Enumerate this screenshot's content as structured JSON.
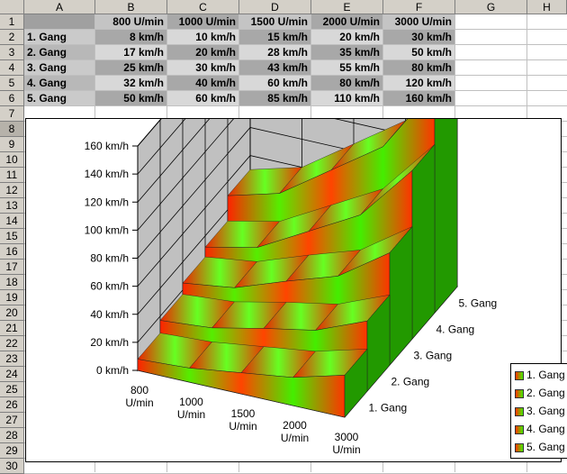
{
  "columns": [
    "A",
    "B",
    "C",
    "D",
    "E",
    "F",
    "G",
    "H"
  ],
  "rows": [
    "1",
    "2",
    "3",
    "4",
    "5",
    "6",
    "7",
    "8",
    "9",
    "10",
    "11",
    "12",
    "13",
    "14",
    "15",
    "16",
    "17",
    "18",
    "19",
    "20",
    "21",
    "22",
    "23",
    "24",
    "25",
    "26",
    "27",
    "28",
    "29",
    "30"
  ],
  "table": {
    "header": [
      "",
      "800 U/min",
      "1000 U/min",
      "1500 U/min",
      "2000 U/min",
      "3000 U/min"
    ],
    "body": [
      [
        "1. Gang",
        "8 km/h",
        "10 km/h",
        "15 km/h",
        "20 km/h",
        "30 km/h"
      ],
      [
        "2. Gang",
        "17 km/h",
        "20 km/h",
        "28 km/h",
        "35 km/h",
        "50 km/h"
      ],
      [
        "3. Gang",
        "25 km/h",
        "30 km/h",
        "43 km/h",
        "55 km/h",
        "80 km/h"
      ],
      [
        "4. Gang",
        "32 km/h",
        "40 km/h",
        "60 km/h",
        "80 km/h",
        "120 km/h"
      ],
      [
        "5. Gang",
        "50 km/h",
        "60 km/h",
        "85 km/h",
        "110 km/h",
        "160 km/h"
      ]
    ]
  },
  "colors": {
    "header_fill": "#c0c0c0",
    "row_fill_light": "#d8d8d8",
    "row_fill_dark": "#a8a8a8",
    "series_start": "#ff3300",
    "series_mid": "#44ee00"
  },
  "chart_data": {
    "type": "area",
    "subtype": "3d-area",
    "categories": [
      "800 U/min",
      "1000 U/min",
      "1500 U/min",
      "2000 U/min",
      "3000 U/min"
    ],
    "series": [
      {
        "name": "1. Gang",
        "values": [
          8,
          10,
          15,
          20,
          30
        ]
      },
      {
        "name": "2. Gang",
        "values": [
          17,
          20,
          28,
          35,
          50
        ]
      },
      {
        "name": "3. Gang",
        "values": [
          25,
          30,
          43,
          55,
          80
        ]
      },
      {
        "name": "4. Gang",
        "values": [
          32,
          40,
          60,
          80,
          120
        ]
      },
      {
        "name": "5. Gang",
        "values": [
          50,
          60,
          85,
          110,
          160
        ]
      }
    ],
    "yticks": [
      "0 km/h",
      "20 km/h",
      "40 km/h",
      "60 km/h",
      "80 km/h",
      "100 km/h",
      "120 km/h",
      "140 km/h",
      "160 km/h"
    ],
    "xticks": [
      [
        "800",
        "U/min"
      ],
      [
        "1000",
        "U/min"
      ],
      [
        "1500",
        "U/min"
      ],
      [
        "2000",
        "U/min"
      ],
      [
        "3000",
        "U/min"
      ]
    ],
    "depth_ticks": [
      "1. Gang",
      "2. Gang",
      "3. Gang",
      "4. Gang",
      "5. Gang"
    ],
    "ylim": [
      0,
      160
    ],
    "legend_position": "right",
    "grid": true
  },
  "legend": {
    "items": [
      "1. Gang",
      "2. Gang",
      "3. Gang",
      "4. Gang",
      "5. Gang"
    ]
  }
}
